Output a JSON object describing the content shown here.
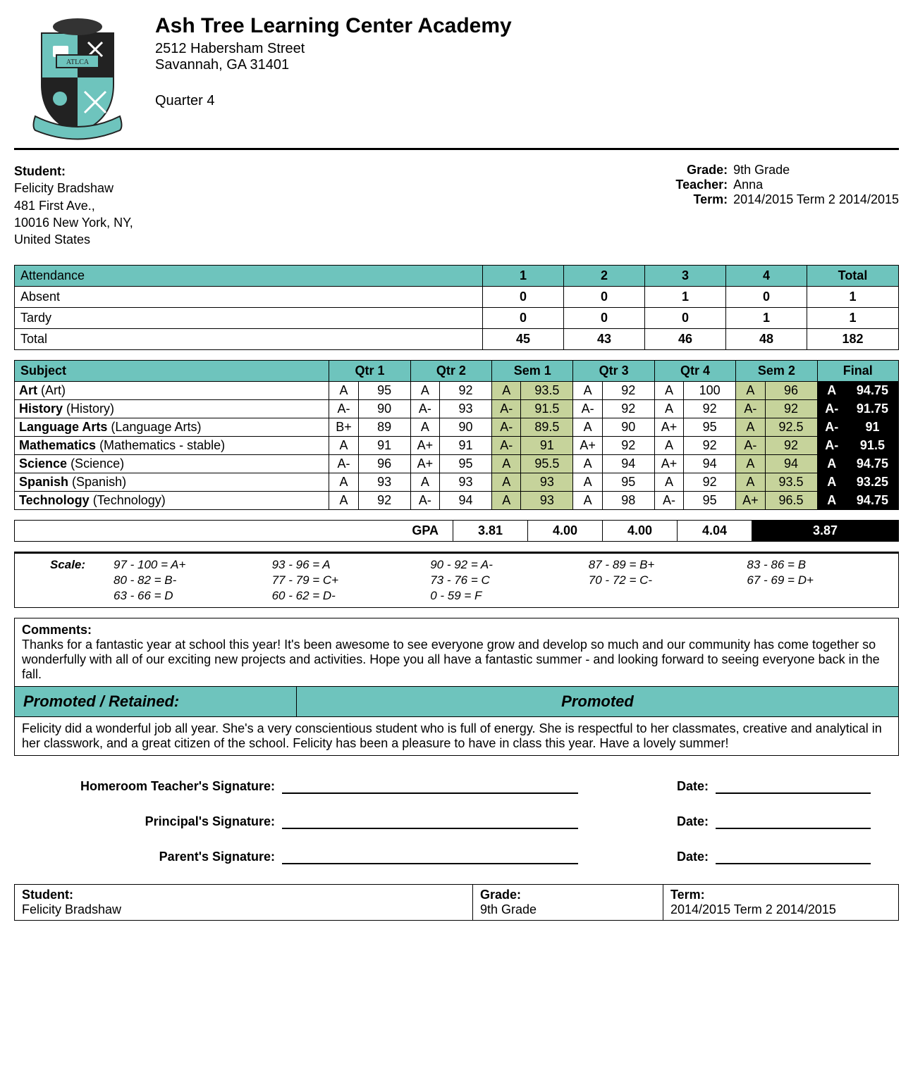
{
  "colors": {
    "teal": "#6ec4bd",
    "sem": "#c6d39b",
    "black": "#000000",
    "white": "#ffffff"
  },
  "school": {
    "name": "Ash Tree Learning Center Academy",
    "addr1": "2512 Habersham Street",
    "addr2": "Savannah, GA 31401",
    "quarter": "Quarter 4"
  },
  "student": {
    "label": "Student:",
    "name": "Felicity Bradshaw",
    "addr1": "481 First Ave.,",
    "addr2": "10016 New York, NY,",
    "addr3": "United States"
  },
  "meta": {
    "grade_label": "Grade:",
    "grade": "9th Grade",
    "teacher_label": "Teacher:",
    "teacher": "Anna",
    "term_label": "Term:",
    "term": "2014/2015 Term 2 2014/2015"
  },
  "attendance": {
    "header": "Attendance",
    "cols": [
      "1",
      "2",
      "3",
      "4",
      "Total"
    ],
    "rows": [
      {
        "label": "Absent",
        "vals": [
          "0",
          "0",
          "1",
          "0",
          "1"
        ]
      },
      {
        "label": "Tardy",
        "vals": [
          "0",
          "0",
          "0",
          "1",
          "1"
        ]
      },
      {
        "label": "Total",
        "vals": [
          "45",
          "43",
          "46",
          "48",
          "182"
        ]
      }
    ]
  },
  "grades": {
    "subject_header": "Subject",
    "periods": [
      "Qtr 1",
      "Qtr 2",
      "Sem 1",
      "Qtr 3",
      "Qtr 4",
      "Sem 2",
      "Final"
    ],
    "rows": [
      {
        "name": "Art",
        "paren": "(Art)",
        "cells": [
          [
            "A",
            "95"
          ],
          [
            "A",
            "92"
          ],
          [
            "A",
            "93.5"
          ],
          [
            "A",
            "92"
          ],
          [
            "A",
            "100"
          ],
          [
            "A",
            "96"
          ],
          [
            "A",
            "94.75"
          ]
        ]
      },
      {
        "name": "History",
        "paren": "(History)",
        "cells": [
          [
            "A-",
            "90"
          ],
          [
            "A-",
            "93"
          ],
          [
            "A-",
            "91.5"
          ],
          [
            "A-",
            "92"
          ],
          [
            "A",
            "92"
          ],
          [
            "A-",
            "92"
          ],
          [
            "A-",
            "91.75"
          ]
        ]
      },
      {
        "name": "Language Arts",
        "paren": "(Language Arts)",
        "cells": [
          [
            "B+",
            "89"
          ],
          [
            "A",
            "90"
          ],
          [
            "A-",
            "89.5"
          ],
          [
            "A",
            "90"
          ],
          [
            "A+",
            "95"
          ],
          [
            "A",
            "92.5"
          ],
          [
            "A-",
            "91"
          ]
        ]
      },
      {
        "name": "Mathematics",
        "paren": " (Mathematics - stable)",
        "cells": [
          [
            "A",
            "91"
          ],
          [
            "A+",
            "91"
          ],
          [
            "A-",
            "91"
          ],
          [
            "A+",
            "92"
          ],
          [
            "A",
            "92"
          ],
          [
            "A-",
            "92"
          ],
          [
            "A-",
            "91.5"
          ]
        ]
      },
      {
        "name": "Science",
        "paren": "(Science)",
        "cells": [
          [
            "A-",
            "96"
          ],
          [
            "A+",
            "95"
          ],
          [
            "A",
            "95.5"
          ],
          [
            "A",
            "94"
          ],
          [
            "A+",
            "94"
          ],
          [
            "A",
            "94"
          ],
          [
            "A",
            "94.75"
          ]
        ]
      },
      {
        "name": "Spanish",
        "paren": "(Spanish)",
        "cells": [
          [
            "A",
            "93"
          ],
          [
            "A",
            "93"
          ],
          [
            "A",
            "93"
          ],
          [
            "A",
            "95"
          ],
          [
            "A",
            "92"
          ],
          [
            "A",
            "93.5"
          ],
          [
            "A",
            "93.25"
          ]
        ]
      },
      {
        "name": "Technology",
        "paren": "(Technology)",
        "cells": [
          [
            "A",
            "92"
          ],
          [
            "A-",
            "94"
          ],
          [
            "A",
            "93"
          ],
          [
            "A",
            "98"
          ],
          [
            "A-",
            "95"
          ],
          [
            "A+",
            "96.5"
          ],
          [
            "A",
            "94.75"
          ]
        ]
      }
    ]
  },
  "gpa": {
    "label": "GPA",
    "vals": [
      "3.81",
      "4.00",
      "4.00",
      "4.04",
      "3.87"
    ]
  },
  "scale": {
    "label": "Scale:",
    "items": [
      "97 - 100 = A+",
      "93 - 96 = A",
      "90 - 92 = A-",
      "87 - 89 = B+",
      "83 - 86 = B",
      "80 - 82 = B-",
      "77 - 79 = C+",
      "73 - 76 = C",
      "70 - 72 = C-",
      "67 - 69 = D+",
      "63 - 66 = D",
      "60 - 62 = D-",
      "0 - 59 = F"
    ]
  },
  "comments": {
    "label": "Comments:",
    "text": "Thanks for a fantastic year at school this year! It's been awesome to see everyone grow and develop so much and our community has come together so wonderfully with all of our exciting new projects and activities. Hope you all have a fantastic summer - and looking forward to seeing everyone back in the fall."
  },
  "promo": {
    "label": "Promoted / Retained:",
    "value": "Promoted",
    "text": "Felicity did a wonderful job all year. She's a very conscientious student who is full of energy. She is respectful to her classmates, creative and analytical in her classwork, and a great citizen of the school. Felicity has been a pleasure to have in class this year. Have a lovely summer!"
  },
  "sigs": {
    "rows": [
      {
        "label": "Homeroom Teacher's Signature:"
      },
      {
        "label": "Principal's Signature:"
      },
      {
        "label": "Parent's Signature:"
      }
    ],
    "date_label": "Date:"
  },
  "footer": {
    "student_label": "Student:",
    "student": "Felicity Bradshaw",
    "grade_label": "Grade:",
    "grade": "9th Grade",
    "term_label": "Term:",
    "term": "2014/2015 Term 2 2014/2015"
  }
}
